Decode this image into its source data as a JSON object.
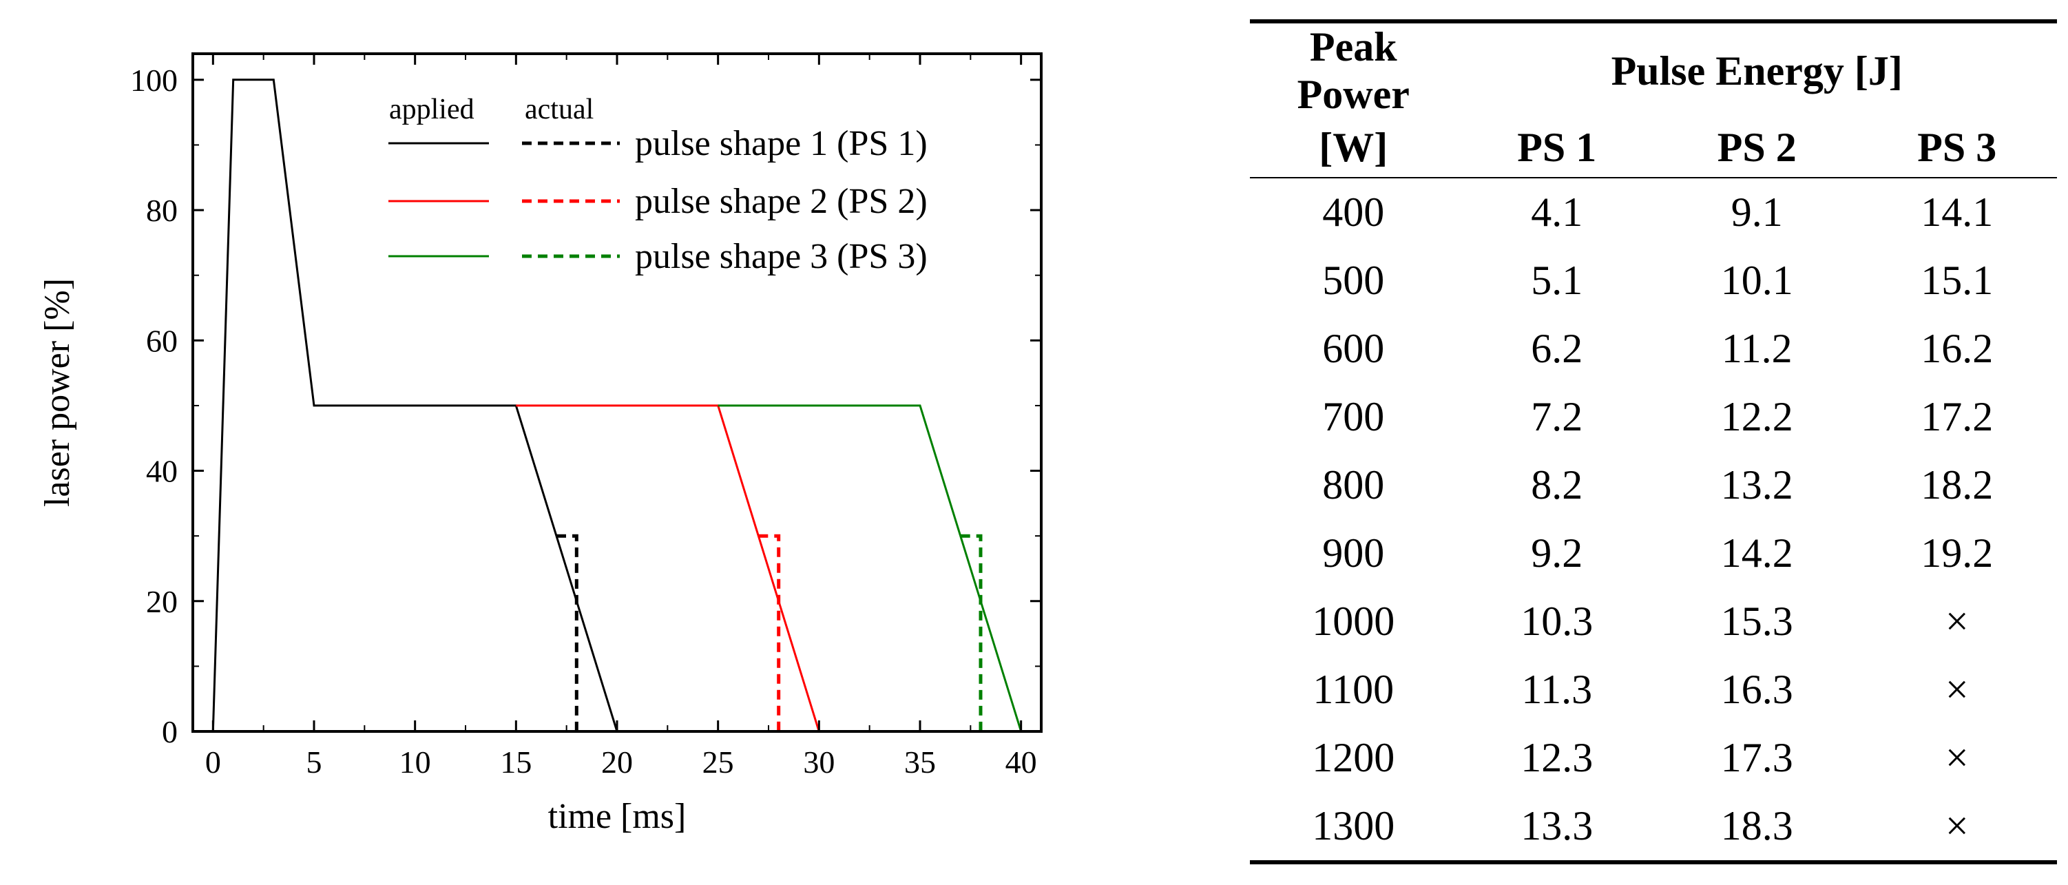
{
  "chart_data": {
    "type": "line",
    "title": "",
    "xlabel": "time [ms]",
    "ylabel": "laser power [%]",
    "xlim": [
      -1,
      41
    ],
    "ylim": [
      0,
      104
    ],
    "xticks": [
      0,
      5,
      10,
      15,
      20,
      25,
      30,
      35,
      40
    ],
    "yticks": [
      0,
      20,
      40,
      60,
      80,
      100
    ],
    "grid": false,
    "legend": {
      "placement": "top-right",
      "header_applied": "applied",
      "header_actual": "actual",
      "entries": [
        "pulse shape 1 (PS 1)",
        "pulse shape 2 (PS 2)",
        "pulse shape 3 (PS 3)"
      ]
    },
    "series": [
      {
        "name": "pulse shape 1 (PS 1) applied",
        "style": "solid",
        "color": "#000000",
        "x": [
          0,
          1,
          3,
          5,
          15,
          20
        ],
        "y": [
          0,
          100,
          100,
          50,
          50,
          0
        ]
      },
      {
        "name": "pulse shape 1 (PS 1) actual",
        "style": "dashed",
        "color": "#000000",
        "x": [
          17,
          18,
          18
        ],
        "y": [
          30,
          30,
          0
        ]
      },
      {
        "name": "pulse shape 2 (PS 2) applied",
        "style": "solid",
        "color": "#ff0000",
        "x": [
          15,
          25,
          30
        ],
        "y": [
          50,
          50,
          0
        ]
      },
      {
        "name": "pulse shape 2 (PS 2) actual",
        "style": "dashed",
        "color": "#ff0000",
        "x": [
          27,
          28,
          28
        ],
        "y": [
          30,
          30,
          0
        ]
      },
      {
        "name": "pulse shape 3 (PS 3) applied",
        "style": "solid",
        "color": "#008000",
        "x": [
          25,
          35,
          40
        ],
        "y": [
          50,
          50,
          0
        ]
      },
      {
        "name": "pulse shape 3 (PS 3) actual",
        "style": "dashed",
        "color": "#008000",
        "x": [
          37,
          38,
          38
        ],
        "y": [
          30,
          30,
          0
        ]
      }
    ]
  },
  "table": {
    "header_row1": {
      "col0": "Peak Power",
      "energy": "Pulse Energy [J]"
    },
    "header_row2": [
      "[W]",
      "PS 1",
      "PS 2",
      "PS 3"
    ],
    "rows": [
      [
        "400",
        "4.1",
        "9.1",
        "14.1"
      ],
      [
        "500",
        "5.1",
        "10.1",
        "15.1"
      ],
      [
        "600",
        "6.2",
        "11.2",
        "16.2"
      ],
      [
        "700",
        "7.2",
        "12.2",
        "17.2"
      ],
      [
        "800",
        "8.2",
        "13.2",
        "18.2"
      ],
      [
        "900",
        "9.2",
        "14.2",
        "19.2"
      ],
      [
        "1000",
        "10.3",
        "15.3",
        "×"
      ],
      [
        "1100",
        "11.3",
        "16.3",
        "×"
      ],
      [
        "1200",
        "12.3",
        "17.3",
        "×"
      ],
      [
        "1300",
        "13.3",
        "18.3",
        "×"
      ]
    ]
  }
}
